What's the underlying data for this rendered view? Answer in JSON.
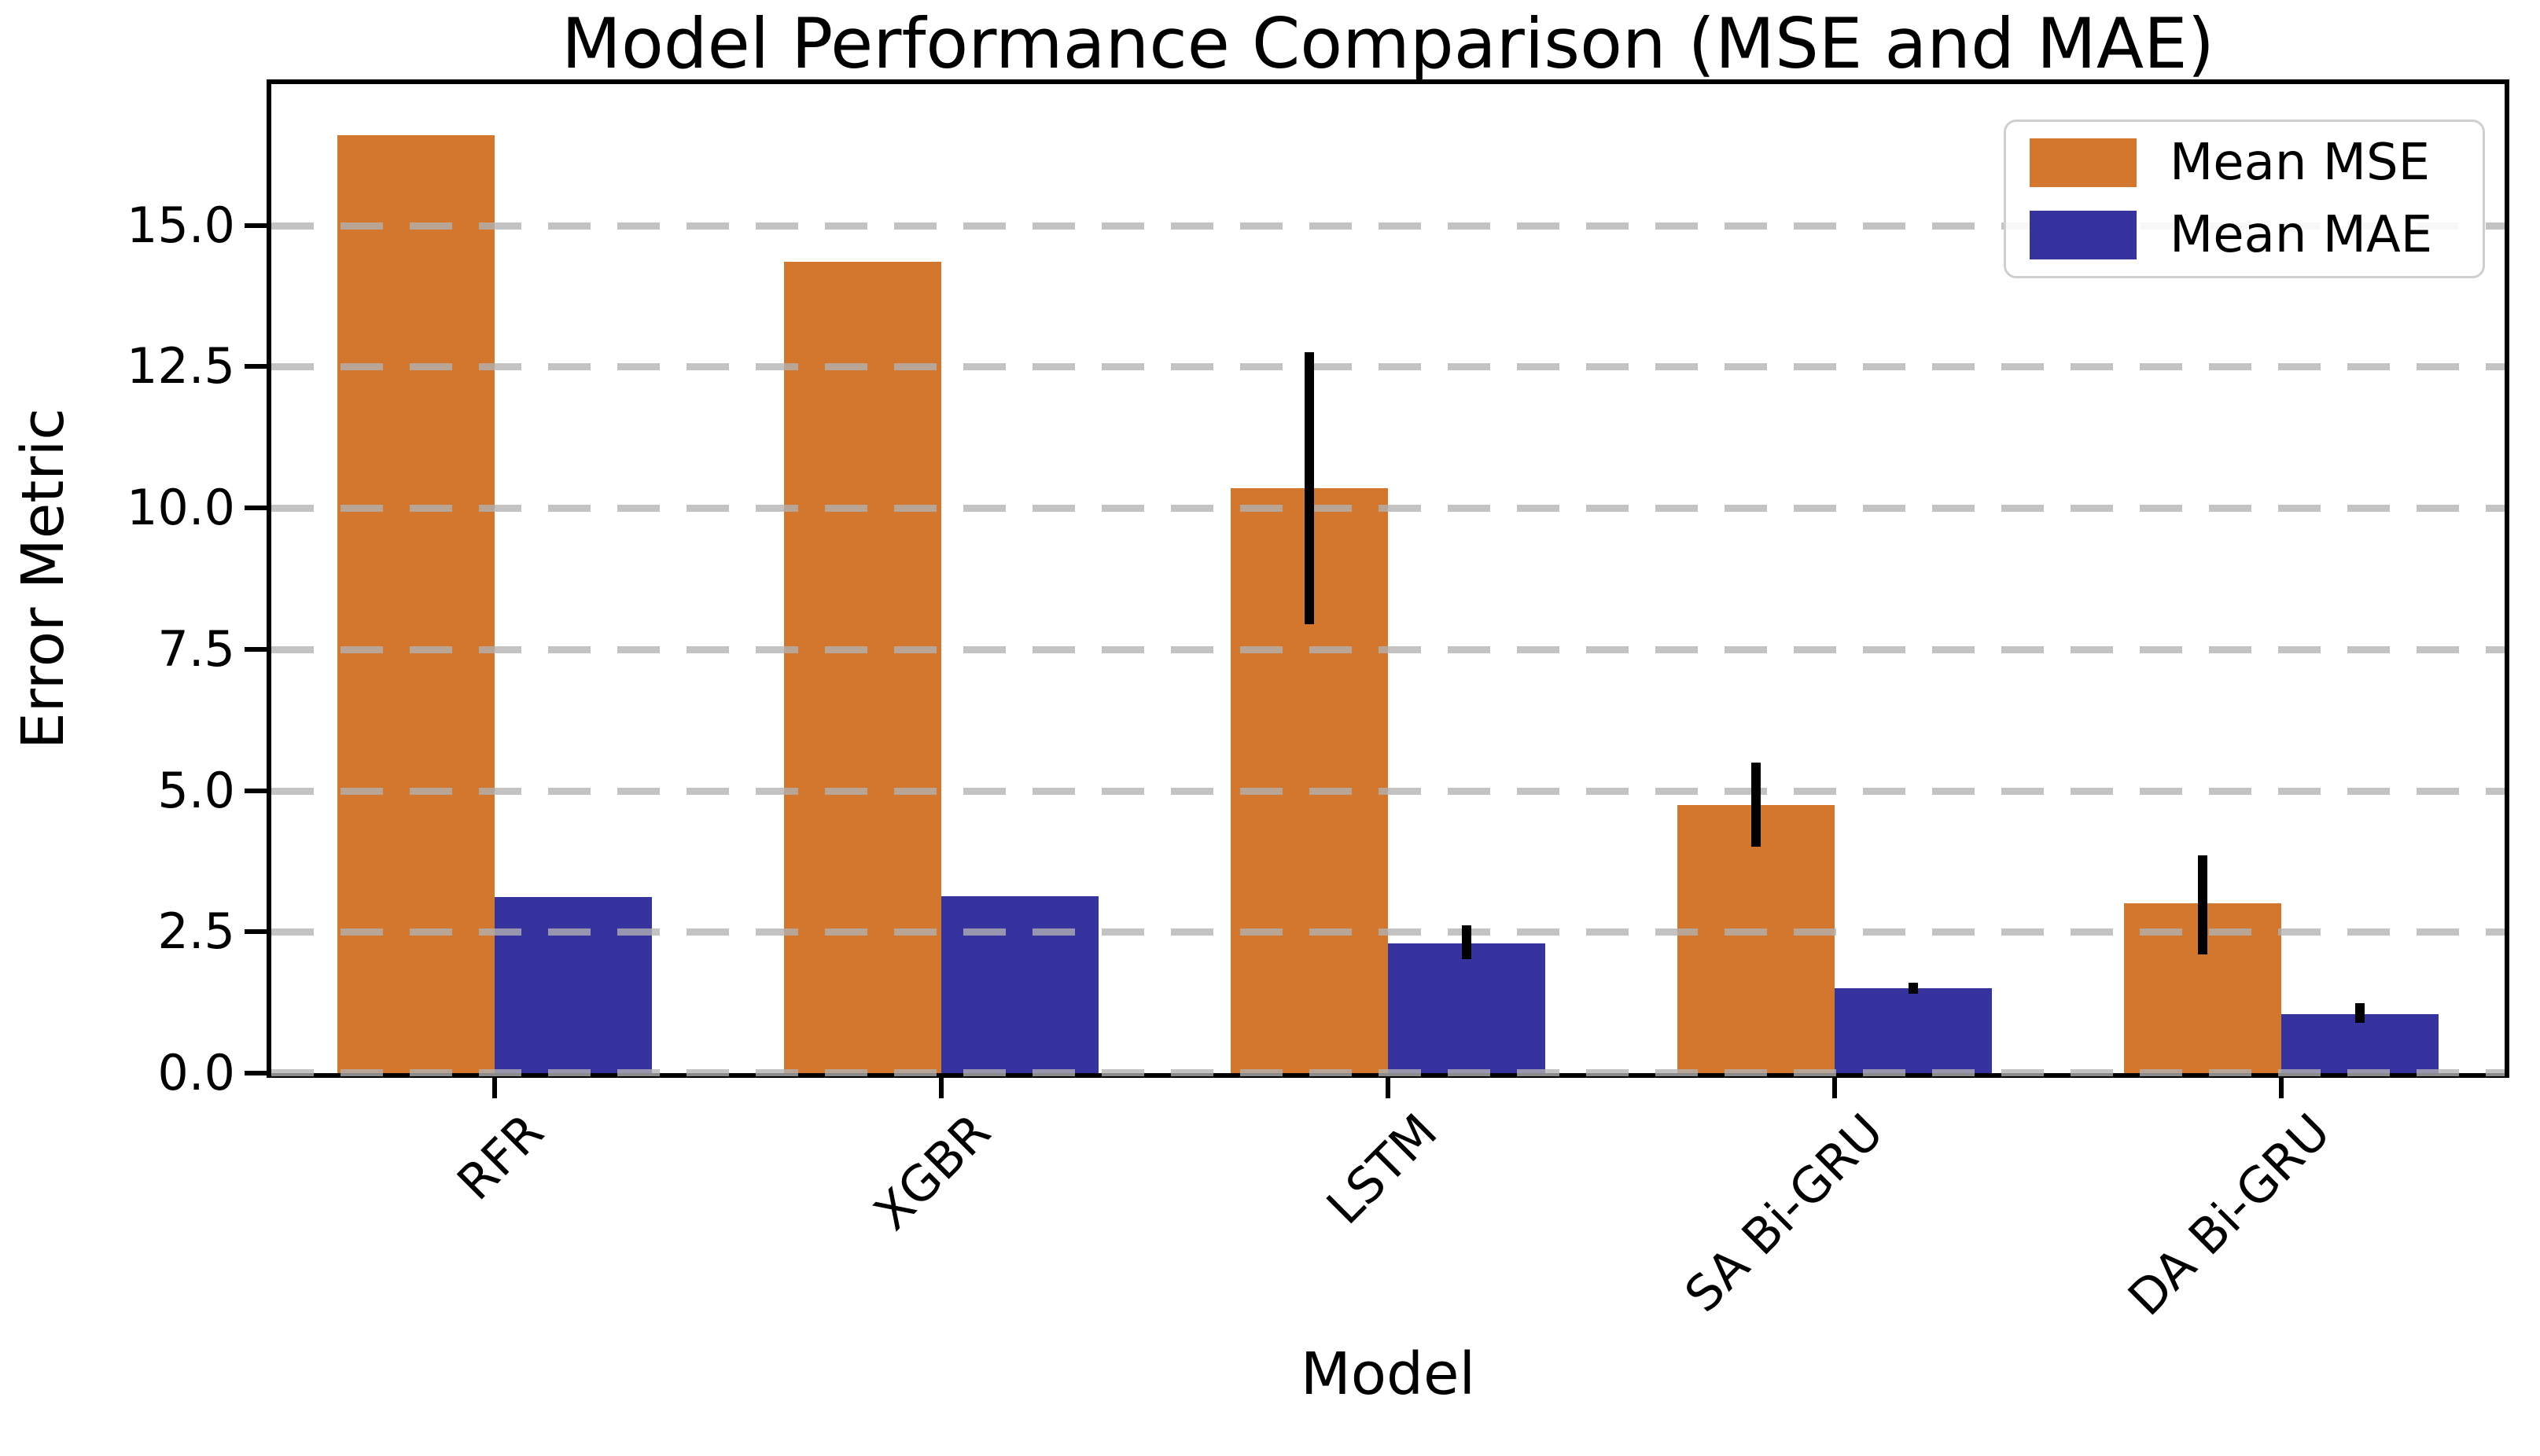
{
  "figure": {
    "title": "Model Performance Comparison (MSE and MAE)",
    "xlabel": "Model",
    "ylabel": "Error Metric"
  },
  "legend": {
    "position": "upper right",
    "items": [
      {
        "label": "Mean MSE",
        "color": "#d3772f"
      },
      {
        "label": "Mean MAE",
        "color": "#37339e"
      }
    ]
  },
  "chart_data": {
    "type": "bar",
    "title": "Model Performance Comparison (MSE and MAE)",
    "xlabel": "Model",
    "ylabel": "Error Metric",
    "categories": [
      "RFR",
      "XGBR",
      "LSTM",
      "SA Bi-GRU",
      "DA Bi-GRU"
    ],
    "series": [
      {
        "name": "Mean MSE",
        "color": "#d3772f",
        "values": [
          16.6,
          14.35,
          10.35,
          4.75,
          3.0
        ],
        "error_low": [
          null,
          null,
          7.95,
          4.0,
          2.1
        ],
        "error_high": [
          null,
          null,
          12.75,
          5.5,
          3.85
        ]
      },
      {
        "name": "Mean MAE",
        "color": "#37339e",
        "values": [
          3.12,
          3.13,
          2.3,
          1.5,
          1.05
        ],
        "error_low": [
          null,
          null,
          2.02,
          1.4,
          0.89
        ],
        "error_high": [
          null,
          null,
          2.62,
          1.6,
          1.24
        ]
      }
    ],
    "yticks": [
      0.0,
      2.5,
      5.0,
      7.5,
      10.0,
      12.5,
      15.0
    ],
    "ytick_labels": [
      "0.0",
      "2.5",
      "5.0",
      "7.5",
      "10.0",
      "12.5",
      "15.0"
    ],
    "ylim": [
      0,
      17.5
    ],
    "grid": "horizontal-dashed",
    "grid_color": "#c8c8c8",
    "axis_color": "#000000",
    "x_tick_label_rotation": 45,
    "legend_position": "upper right"
  }
}
